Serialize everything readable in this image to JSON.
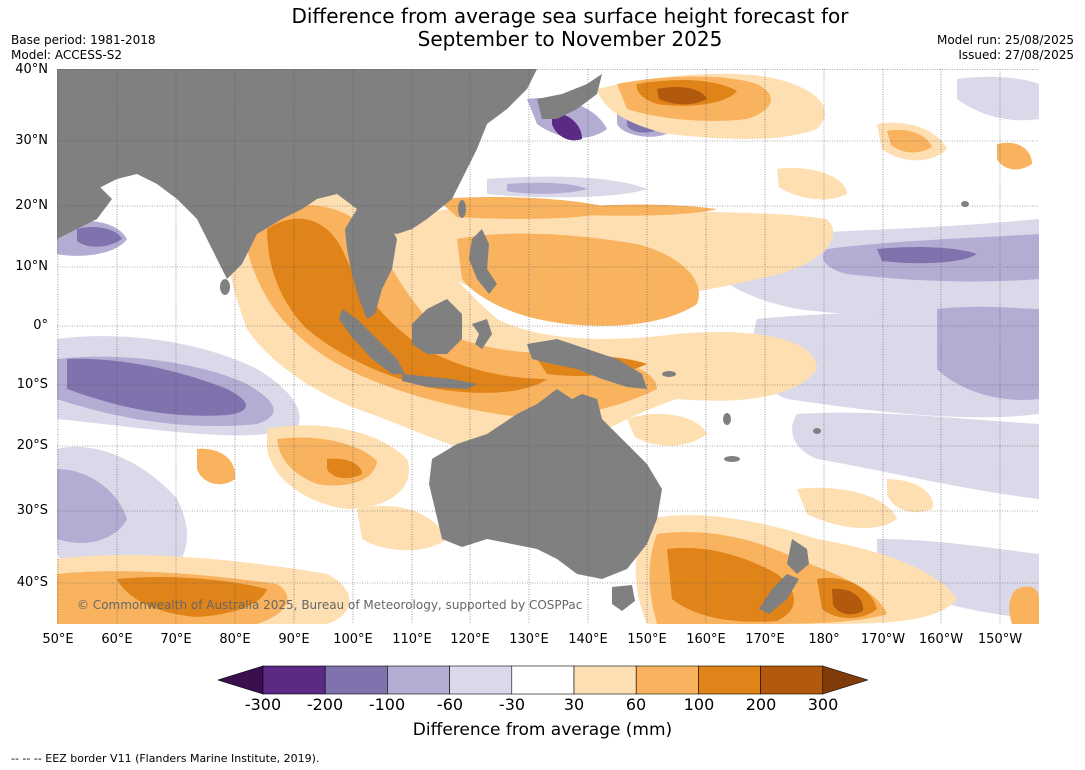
{
  "title_line1": "Difference from average sea surface height forecast for",
  "title_line2": "September to November 2025",
  "meta": {
    "base_period": "Base period: 1981-2018",
    "model": "Model: ACCESS-S2",
    "model_run": "Model run: 25/08/2025",
    "issued": "Issued: 27/08/2025"
  },
  "lat_labels": [
    "40°N",
    "30°N",
    "20°N",
    "10°N",
    "0°",
    "10°S",
    "20°S",
    "30°S",
    "40°S"
  ],
  "lon_labels": [
    "50°E",
    "60°E",
    "70°E",
    "80°E",
    "90°E",
    "100°E",
    "110°E",
    "120°E",
    "130°E",
    "140°E",
    "150°E",
    "160°E",
    "170°E",
    "180°",
    "170°W",
    "160°W",
    "150°W"
  ],
  "copyright": "© Commonwealth of Australia 2025, Bureau of Meteorology, supported by COSPPac",
  "colorbar": {
    "ticks": [
      "-300",
      "-200",
      "-100",
      "-60",
      "-30",
      "30",
      "60",
      "100",
      "200",
      "300"
    ],
    "colors": [
      "#3b0f4f",
      "#5a2a85",
      "#8072ad",
      "#b3add4",
      "#d9d9ea",
      "#ffffff",
      "#fedfb2",
      "#f9b35f",
      "#e08318",
      "#b15a0d",
      "#7f3b08"
    ],
    "title": "Difference from average (mm)"
  },
  "footer": "--  --  -- EEZ border V11 (Flanders Marine Institute, 2019).",
  "land_color": "#808080"
}
